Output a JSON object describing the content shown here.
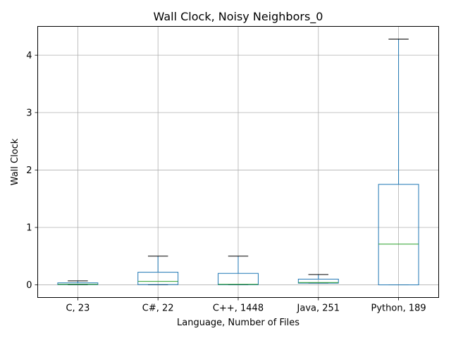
{
  "chart_data": {
    "type": "box",
    "title": "Wall Clock, Noisy Neighbors_0",
    "xlabel": "Language, Number of Files",
    "ylabel": "Wall Clock",
    "ylim": [
      -0.22,
      4.5
    ],
    "yticks": [
      0,
      1,
      2,
      3,
      4
    ],
    "grid": true,
    "categories": [
      "C, 23",
      "C#, 22",
      "C++, 1448",
      "Java, 251",
      "Python, 189"
    ],
    "boxes": [
      {
        "category": "C, 23",
        "whislo": 0.0,
        "q1": 0.005,
        "med": 0.01,
        "q3": 0.035,
        "whishi": 0.07
      },
      {
        "category": "C#, 22",
        "whislo": 0.0,
        "q1": 0.005,
        "med": 0.06,
        "q3": 0.22,
        "whishi": 0.5
      },
      {
        "category": "C++, 1448",
        "whislo": 0.0,
        "q1": 0.003,
        "med": 0.01,
        "q3": 0.2,
        "whishi": 0.5
      },
      {
        "category": "Java, 251",
        "whislo": 0.03,
        "q1": 0.03,
        "med": 0.04,
        "q3": 0.1,
        "whishi": 0.18
      },
      {
        "category": "Python, 189",
        "whislo": 0.0,
        "q1": 0.0,
        "med": 0.71,
        "q3": 1.75,
        "whishi": 4.28
      }
    ],
    "colors": {
      "box": "#1f77b4",
      "median": "#2ca02c",
      "whisker_cap": "#000000",
      "grid": "#b0b0b0"
    }
  }
}
